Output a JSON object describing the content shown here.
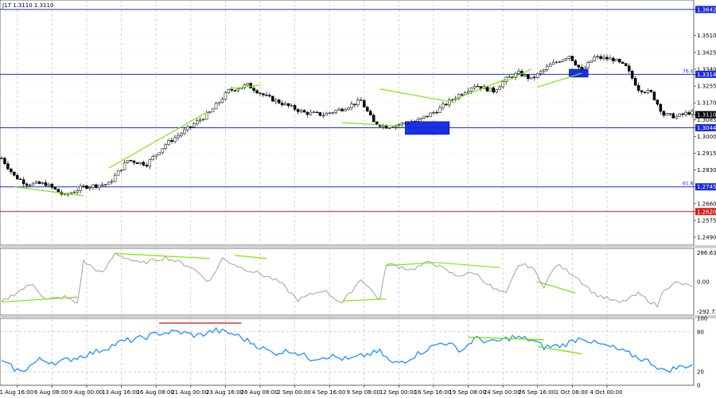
{
  "header": {
    "ohlc_text": "J17 1.3110 1.3110"
  },
  "chart_data": [
    {
      "type": "candlestick",
      "panel": "price",
      "ylim": [
        1.245,
        1.369
      ],
      "ticks": [
        "1.3642",
        "1.3510",
        "1.3425",
        "1.3340",
        "1.3314",
        "1.3255",
        "1.3170",
        "1.3110",
        "1.3085",
        "1.3044",
        "1.3000",
        "1.2915",
        "1.2830",
        "1.2745",
        "1.2660",
        "1.2620",
        "1.2575",
        "1.2490"
      ],
      "horizontal_lines": [
        {
          "label": "1.3642",
          "value": 1.3642,
          "color": "#1a2ad8",
          "fib": ""
        },
        {
          "label": "1.3314",
          "value": 1.3314,
          "color": "#1a2ad8",
          "fib": "76.4"
        },
        {
          "label": "1.3044",
          "value": 1.3044,
          "color": "#1a2ad8",
          "fib": ""
        },
        {
          "label": "1.2745",
          "value": 1.2745,
          "color": "#1a2ad8",
          "fib": "61.8"
        },
        {
          "label": "1.2620",
          "value": 1.262,
          "color": "#d81a1a",
          "fib": ""
        }
      ],
      "current_price": {
        "label": "1.3110",
        "value": 1.311
      },
      "anchors": [
        [
          0,
          1.289
        ],
        [
          4,
          1.28
        ],
        [
          8,
          1.276
        ],
        [
          14,
          1.276
        ],
        [
          20,
          1.27
        ],
        [
          26,
          1.2745
        ],
        [
          34,
          1.276
        ],
        [
          40,
          1.288
        ],
        [
          46,
          1.286
        ],
        [
          52,
          1.296
        ],
        [
          60,
          1.305
        ],
        [
          66,
          1.312
        ],
        [
          72,
          1.323
        ],
        [
          78,
          1.326
        ],
        [
          84,
          1.32
        ],
        [
          90,
          1.316
        ],
        [
          96,
          1.312
        ],
        [
          102,
          1.311
        ],
        [
          108,
          1.314
        ],
        [
          114,
          1.318
        ],
        [
          118,
          1.307
        ],
        [
          122,
          1.305
        ],
        [
          126,
          1.306
        ],
        [
          132,
          1.308
        ],
        [
          138,
          1.313
        ],
        [
          144,
          1.32
        ],
        [
          150,
          1.326
        ],
        [
          156,
          1.323
        ],
        [
          160,
          1.329
        ],
        [
          164,
          1.332
        ],
        [
          168,
          1.329
        ],
        [
          174,
          1.336
        ],
        [
          180,
          1.341
        ],
        [
          184,
          1.333
        ],
        [
          188,
          1.34
        ],
        [
          194,
          1.339
        ],
        [
          198,
          1.335
        ],
        [
          202,
          1.324
        ],
        [
          206,
          1.322
        ],
        [
          210,
          1.311
        ],
        [
          214,
          1.31
        ],
        [
          218,
          1.312
        ]
      ],
      "trendlines": [
        {
          "from": [
            4,
            1.2745
          ],
          "to": [
            26,
            1.27
          ]
        },
        {
          "from": [
            34,
            1.284
          ],
          "to": [
            66,
            1.313
          ]
        },
        {
          "from": [
            72,
            1.324
          ],
          "to": [
            82,
            1.326
          ]
        },
        {
          "from": [
            108,
            1.307
          ],
          "to": [
            128,
            1.305
          ]
        },
        {
          "from": [
            120,
            1.324
          ],
          "to": [
            144,
            1.317
          ]
        },
        {
          "from": [
            144,
            1.319
          ],
          "to": [
            160,
            1.329
          ]
        },
        {
          "from": [
            160,
            1.328
          ],
          "to": [
            168,
            1.334
          ]
        },
        {
          "from": [
            170,
            1.325
          ],
          "to": [
            184,
            1.332
          ]
        }
      ],
      "boxes": [
        {
          "from": [
            128,
            1.3075
          ],
          "to": [
            142,
            1.301
          ]
        },
        {
          "from": [
            180,
            1.334
          ],
          "to": [
            186,
            1.33
          ]
        }
      ]
    },
    {
      "type": "line",
      "panel": "cci",
      "ylim": [
        -330,
        330
      ],
      "ticks": [
        "286.6354",
        "0.00",
        "-292.7312"
      ],
      "color": "#a8a8a8",
      "anchors": [
        [
          0,
          -200
        ],
        [
          6,
          -80
        ],
        [
          10,
          -20
        ],
        [
          14,
          -180
        ],
        [
          20,
          -150
        ],
        [
          24,
          -210
        ],
        [
          26,
          200
        ],
        [
          32,
          80
        ],
        [
          36,
          280
        ],
        [
          44,
          180
        ],
        [
          52,
          240
        ],
        [
          60,
          150
        ],
        [
          66,
          0
        ],
        [
          70,
          230
        ],
        [
          76,
          140
        ],
        [
          82,
          80
        ],
        [
          88,
          0
        ],
        [
          94,
          -180
        ],
        [
          102,
          -80
        ],
        [
          108,
          -210
        ],
        [
          114,
          30
        ],
        [
          120,
          -180
        ],
        [
          122,
          180
        ],
        [
          130,
          120
        ],
        [
          136,
          200
        ],
        [
          144,
          60
        ],
        [
          150,
          90
        ],
        [
          156,
          -70
        ],
        [
          160,
          -120
        ],
        [
          164,
          170
        ],
        [
          168,
          150
        ],
        [
          172,
          -40
        ],
        [
          176,
          170
        ],
        [
          182,
          60
        ],
        [
          188,
          -120
        ],
        [
          196,
          -210
        ],
        [
          202,
          -120
        ],
        [
          208,
          -240
        ],
        [
          210,
          -70
        ],
        [
          214,
          -10
        ],
        [
          218,
          -40
        ]
      ],
      "trendlines": [
        {
          "from": [
            0,
            -200
          ],
          "to": [
            24,
            -150
          ]
        },
        {
          "from": [
            36,
            280
          ],
          "to": [
            66,
            230
          ]
        },
        {
          "from": [
            74,
            260
          ],
          "to": [
            84,
            230
          ]
        },
        {
          "from": [
            108,
            -190
          ],
          "to": [
            122,
            -170
          ]
        },
        {
          "from": [
            122,
            160
          ],
          "to": [
            138,
            190
          ]
        },
        {
          "from": [
            138,
            190
          ],
          "to": [
            158,
            140
          ]
        },
        {
          "from": [
            170,
            0
          ],
          "to": [
            182,
            -110
          ]
        }
      ]
    },
    {
      "type": "line",
      "panel": "rsi",
      "ylim": [
        0,
        100
      ],
      "ticks": [
        "100",
        "80",
        "20",
        "0"
      ],
      "levels": [
        80,
        20
      ],
      "color": "#1e90ff",
      "anchors": [
        [
          0,
          35
        ],
        [
          6,
          20
        ],
        [
          12,
          38
        ],
        [
          18,
          34
        ],
        [
          24,
          42
        ],
        [
          30,
          50
        ],
        [
          38,
          65
        ],
        [
          44,
          70
        ],
        [
          50,
          78
        ],
        [
          56,
          80
        ],
        [
          62,
          74
        ],
        [
          68,
          82
        ],
        [
          74,
          76
        ],
        [
          80,
          62
        ],
        [
          86,
          48
        ],
        [
          92,
          52
        ],
        [
          98,
          40
        ],
        [
          104,
          44
        ],
        [
          110,
          38
        ],
        [
          116,
          46
        ],
        [
          120,
          50
        ],
        [
          124,
          32
        ],
        [
          128,
          37
        ],
        [
          134,
          52
        ],
        [
          140,
          65
        ],
        [
          146,
          52
        ],
        [
          150,
          70
        ],
        [
          156,
          64
        ],
        [
          162,
          72
        ],
        [
          168,
          68
        ],
        [
          172,
          57
        ],
        [
          178,
          60
        ],
        [
          184,
          72
        ],
        [
          188,
          63
        ],
        [
          194,
          56
        ],
        [
          200,
          45
        ],
        [
          206,
          34
        ],
        [
          210,
          21
        ],
        [
          214,
          26
        ],
        [
          218,
          30
        ]
      ],
      "trendlines": [
        {
          "from": [
            148,
            72
          ],
          "to": [
            172,
            68
          ],
          "color": "#7fe800"
        },
        {
          "from": [
            170,
            58
          ],
          "to": [
            184,
            47
          ],
          "color": "#7fe800"
        },
        {
          "from": [
            50,
            93
          ],
          "to": [
            76,
            93
          ],
          "color": "#e33030"
        }
      ]
    }
  ],
  "x_axis": {
    "bars": 220,
    "labels": [
      {
        "bar": 5,
        "text": "1 Aug 16:00"
      },
      {
        "bar": 16,
        "text": "6 Aug 08:00"
      },
      {
        "bar": 27,
        "text": "9 Aug 00:00"
      },
      {
        "bar": 38,
        "text": "13 Aug 16:00"
      },
      {
        "bar": 49,
        "text": "16 Aug 08:00"
      },
      {
        "bar": 60,
        "text": "21 Aug 00:00"
      },
      {
        "bar": 71,
        "text": "23 Aug 16:00"
      },
      {
        "bar": 82,
        "text": "28 Aug 08:00"
      },
      {
        "bar": 93,
        "text": "2 Sep 00:00"
      },
      {
        "bar": 104,
        "text": "4 Sep 16:00"
      },
      {
        "bar": 115,
        "text": "9 Sep 08:00"
      },
      {
        "bar": 126,
        "text": "12 Sep 00:00"
      },
      {
        "bar": 137,
        "text": "16 Sep 16:00"
      },
      {
        "bar": 148,
        "text": "19 Sep 08:00"
      },
      {
        "bar": 159,
        "text": "24 Sep 00:00"
      },
      {
        "bar": 170,
        "text": "26 Sep 16:00"
      },
      {
        "bar": 181,
        "text": "1 Oct 08:00"
      },
      {
        "bar": 192,
        "text": "4 Oct 00:00"
      }
    ]
  },
  "colors": {
    "candle": "#000000",
    "trend": "#7fe800",
    "level": "#1a2ad8",
    "red_level": "#d81a1a",
    "box": "#0a28e0",
    "grid": "#c0c0c0"
  }
}
